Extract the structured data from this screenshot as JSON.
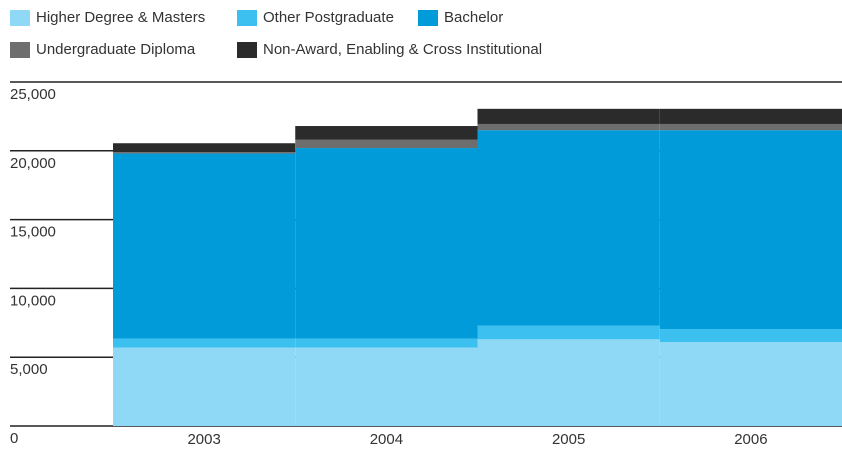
{
  "chart_data": {
    "type": "stacked_bar",
    "categories": [
      "2003",
      "2004",
      "2005",
      "2006"
    ],
    "series": [
      {
        "name": "Higher Degree & Masters",
        "color": "#8fd9f6",
        "values": [
          5700,
          5700,
          6300,
          6100
        ]
      },
      {
        "name": "Other Postgraduate",
        "color": "#3cc0f0",
        "values": [
          650,
          650,
          1000,
          950
        ]
      },
      {
        "name": "Bachelor",
        "color": "#009bd8",
        "values": [
          13450,
          13850,
          14200,
          14450
        ]
      },
      {
        "name": "Undergraduate Diploma",
        "color": "#6e6e6e",
        "values": [
          100,
          600,
          450,
          450
        ]
      },
      {
        "name": "Non-Award, Enabling & Cross Institutional",
        "color": "#2b2b2b",
        "values": [
          650,
          1000,
          1100,
          1100
        ]
      }
    ],
    "ylim": [
      0,
      25000
    ],
    "yticks": [
      0,
      {
        "value": 5000,
        "label": "5,000"
      },
      {
        "value": 10000,
        "label": "10,000"
      },
      {
        "value": 15000,
        "label": "15,000"
      },
      {
        "value": 20000,
        "label": "20,000"
      },
      {
        "value": 25000,
        "label": "25,000"
      }
    ],
    "grid": true
  }
}
